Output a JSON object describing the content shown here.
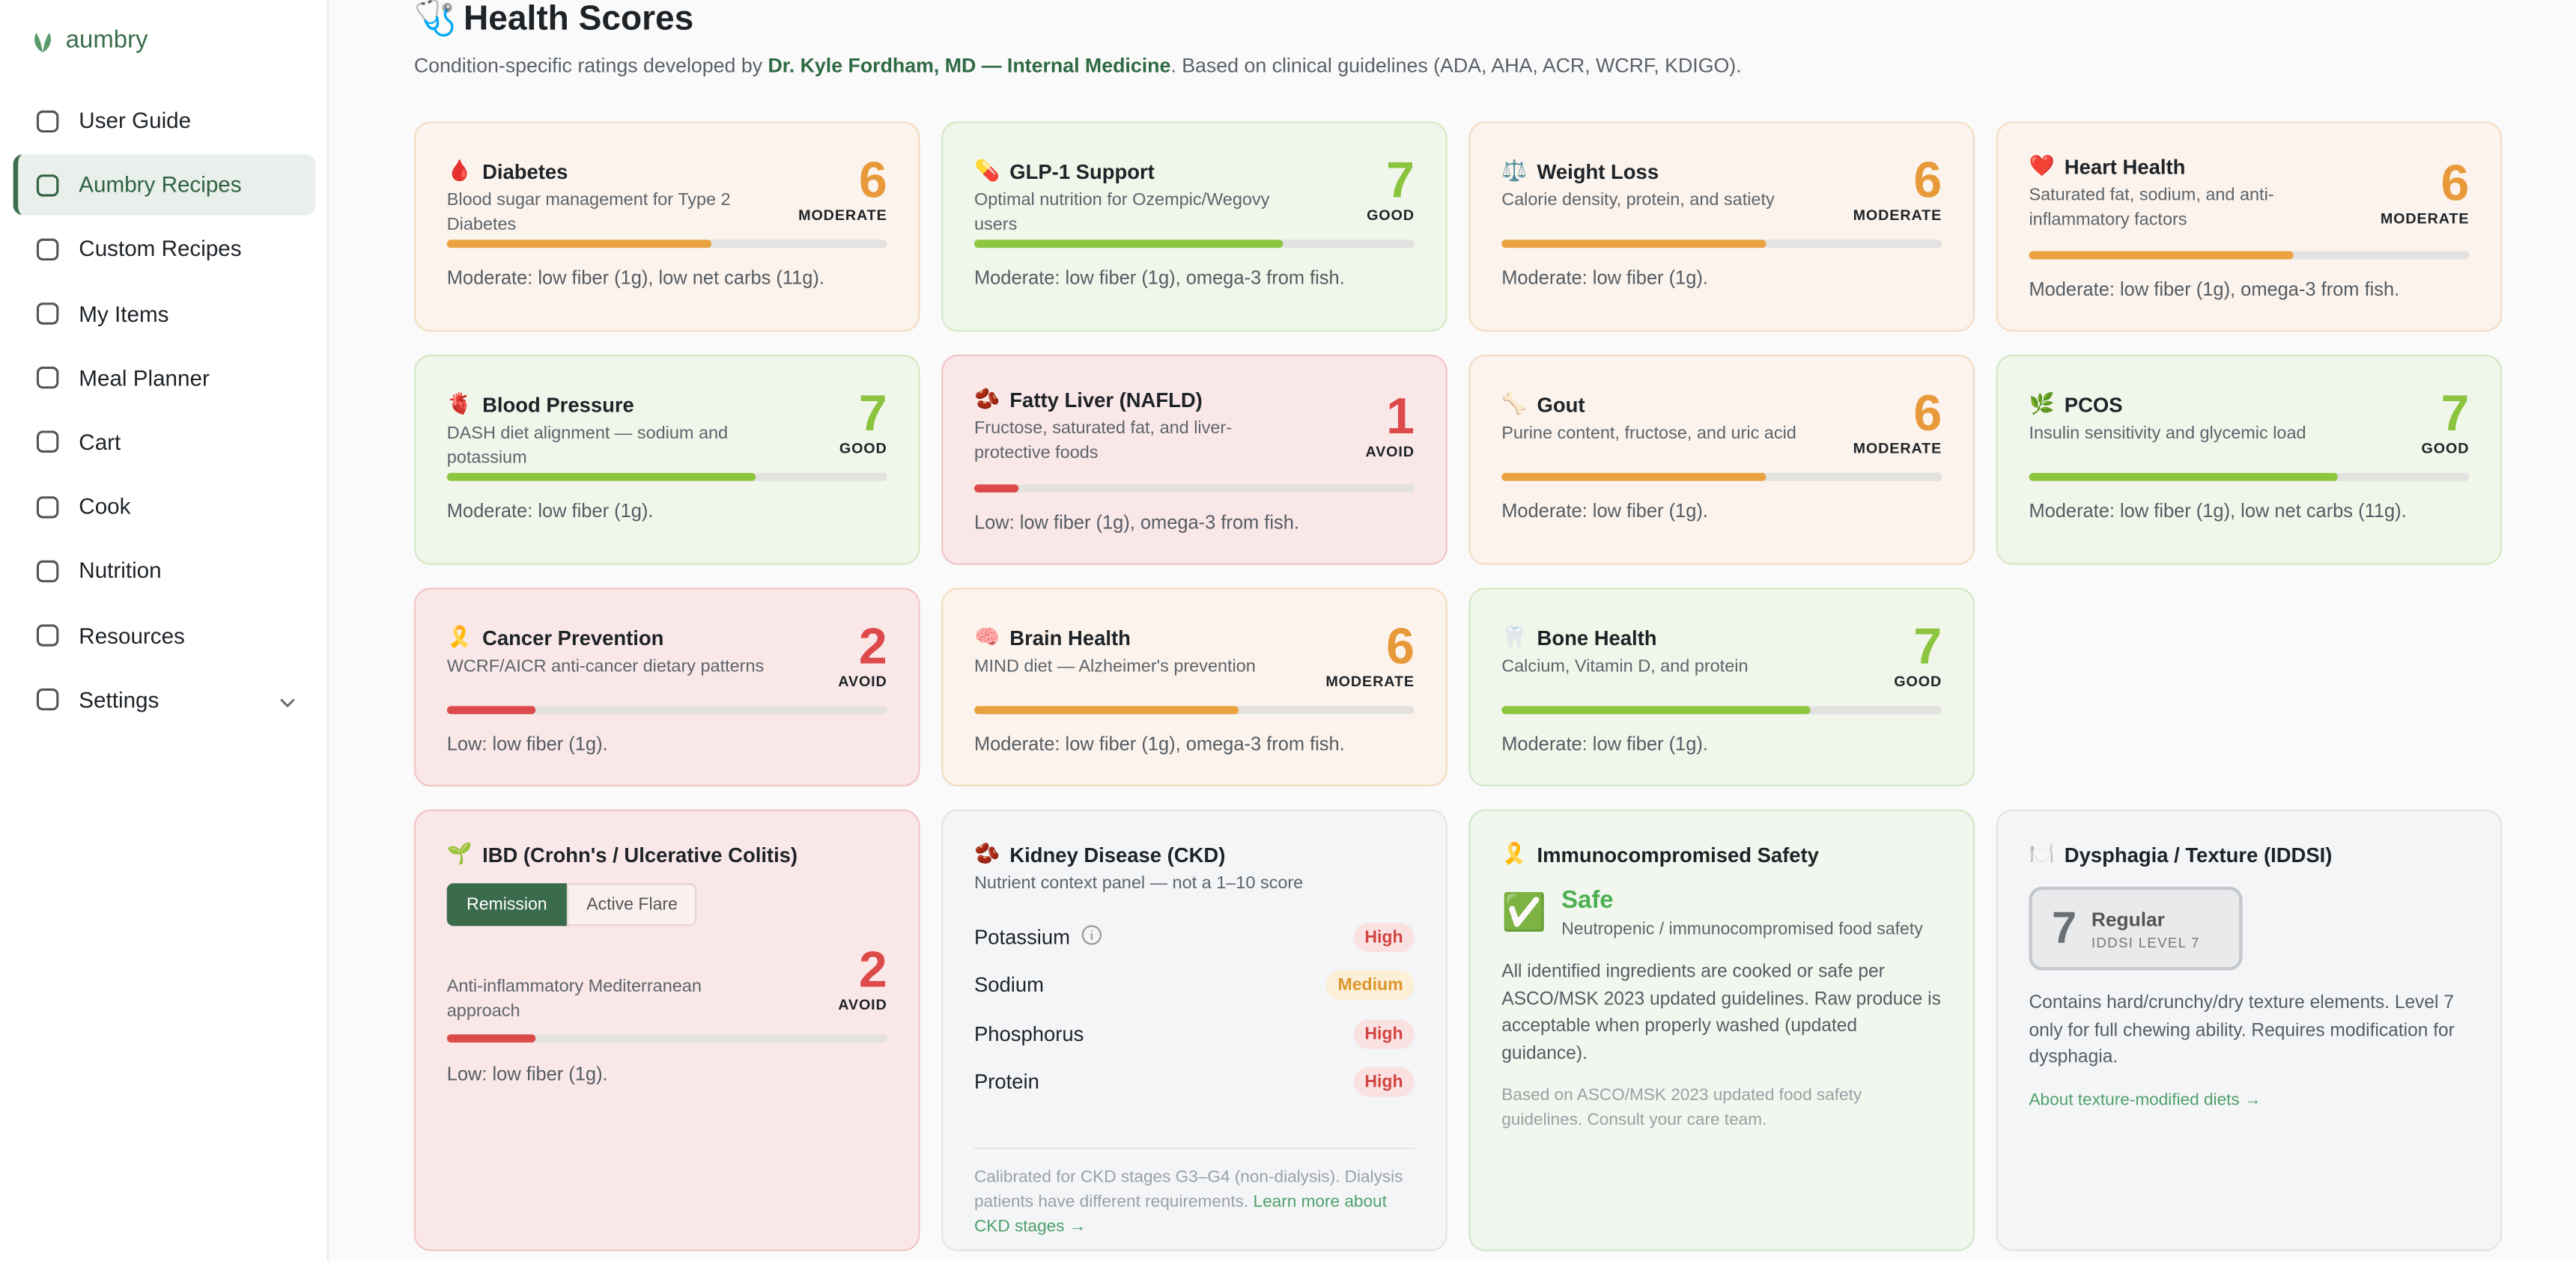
{
  "sidebar": {
    "logo": "aumbry",
    "nav": [
      {
        "label": "User Guide",
        "active": false
      },
      {
        "label": "Aumbry Recipes",
        "active": true
      },
      {
        "label": "Custom Recipes",
        "active": false
      },
      {
        "label": "My Items",
        "active": false
      },
      {
        "label": "Meal Planner",
        "active": false
      },
      {
        "label": "Cart",
        "active": false
      },
      {
        "label": "Cook",
        "active": false
      },
      {
        "label": "Nutrition",
        "active": false
      },
      {
        "label": "Resources",
        "active": false
      },
      {
        "label": "Settings",
        "active": false,
        "expandable": true
      }
    ]
  },
  "header": {
    "icon": "🩺",
    "title": "Health Scores",
    "subtitle_before": "Condition-specific ratings developed by ",
    "author": "Dr. Kyle Fordham, MD — Internal Medicine",
    "subtitle_after": ". Based on clinical guidelines (ADA, AHA, ACR, WCRF, KDIGO)."
  },
  "bar_range": [
    0,
    10
  ],
  "score_cards": [
    {
      "icon": "🩸",
      "name": "Diabetes",
      "description": "Blood sugar management for Type 2 Diabetes",
      "score": 6,
      "rating": "MODERATE",
      "note": "Moderate: low fiber (1g), low net carbs (11g)."
    },
    {
      "icon": "💊",
      "name": "GLP-1 Support",
      "description": "Optimal nutrition for Ozempic/Wegovy users",
      "score": 7,
      "rating": "GOOD",
      "note": "Moderate: low fiber (1g), omega-3 from fish."
    },
    {
      "icon": "⚖️",
      "name": "Weight Loss",
      "description": "Calorie density, protein, and satiety",
      "score": 6,
      "rating": "MODERATE",
      "note": "Moderate: low fiber (1g)."
    },
    {
      "icon": "❤️",
      "name": "Heart Health",
      "description": "Saturated fat, sodium, and anti-inflammatory factors",
      "score": 6,
      "rating": "MODERATE",
      "note": "Moderate: low fiber (1g), omega-3 from fish."
    },
    {
      "icon": "🫀",
      "name": "Blood Pressure",
      "description": "DASH diet alignment — sodium and potassium",
      "score": 7,
      "rating": "GOOD",
      "note": "Moderate: low fiber (1g)."
    },
    {
      "icon": "🫘",
      "name": "Fatty Liver (NAFLD)",
      "description": "Fructose, saturated fat, and liver-protective foods",
      "score": 1,
      "rating": "AVOID",
      "note": "Low: low fiber (1g), omega-3 from fish."
    },
    {
      "icon": "🦴",
      "name": "Gout",
      "description": "Purine content, fructose, and uric acid",
      "score": 6,
      "rating": "MODERATE",
      "note": "Moderate: low fiber (1g)."
    },
    {
      "icon": "🌿",
      "name": "PCOS",
      "description": "Insulin sensitivity and glycemic load",
      "score": 7,
      "rating": "GOOD",
      "note": "Moderate: low fiber (1g), low net carbs (11g)."
    },
    {
      "icon": "🎗️",
      "name": "Cancer Prevention",
      "description": "WCRF/AICR anti-cancer dietary patterns",
      "score": 2,
      "rating": "AVOID",
      "note": "Low: low fiber (1g)."
    },
    {
      "icon": "🧠",
      "name": "Brain Health",
      "description": "MIND diet — Alzheimer's prevention",
      "score": 6,
      "rating": "MODERATE",
      "note": "Moderate: low fiber (1g), omega-3 from fish."
    },
    {
      "icon": "🦷",
      "name": "Bone Health",
      "description": "Calcium, Vitamin D, and protein",
      "score": 7,
      "rating": "GOOD",
      "note": "Moderate: low fiber (1g)."
    }
  ],
  "ibd": {
    "icon": "🌱",
    "name": "IBD (Crohn's / Ulcerative Colitis)",
    "tabs": [
      {
        "label": "Remission",
        "active": true
      },
      {
        "label": "Active Flare",
        "active": false
      }
    ],
    "description": "Anti-inflammatory Mediterranean approach",
    "score": 2,
    "rating": "AVOID",
    "note": "Low: low fiber (1g)."
  },
  "kidney": {
    "icon": "🫘",
    "name": "Kidney Disease (CKD)",
    "description": "Nutrient context panel — not a 1–10 score",
    "nutrients": [
      {
        "name": "Potassium",
        "level": "High",
        "info": true
      },
      {
        "name": "Sodium",
        "level": "Medium",
        "info": false
      },
      {
        "name": "Phosphorus",
        "level": "High",
        "info": false
      },
      {
        "name": "Protein",
        "level": "High",
        "info": false
      }
    ],
    "footnote": "Calibrated for CKD stages G3–G4 (non-dialysis). Dialysis patients have different requirements. ",
    "link": "Learn more about CKD stages →"
  },
  "immuno": {
    "icon": "🎗️",
    "name": "Immunocompromised Safety",
    "status_icon": "✅",
    "status": "Safe",
    "status_description": "Neutropenic / immunocompromised food safety",
    "body": "All identified ingredients are cooked or safe per ASCO/MSK 2023 updated guidelines. Raw produce is acceptable when properly washed (updated guidance).",
    "footnote": "Based on ASCO/MSK 2023 updated food safety guidelines. Consult your care team."
  },
  "dysphagia": {
    "icon": "🍽️",
    "name": "Dysphagia / Texture (IDDSI)",
    "level": 7,
    "level_name": "Regular",
    "level_label": "IDDSI LEVEL 7",
    "body": "Contains hard/crunchy/dry texture elements. Level 7 only for full chewing ability. Requires modification for dysphagia.",
    "link": "About texture-modified diets →"
  }
}
